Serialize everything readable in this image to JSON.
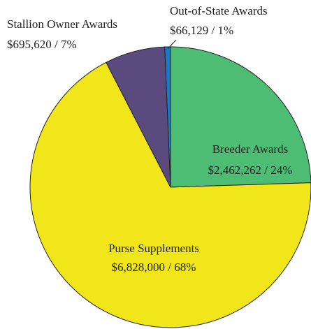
{
  "chart_data": {
    "type": "pie",
    "categories": [
      "Breeder Awards",
      "Purse Supplements",
      "Stallion Owner Awards",
      "Out-of-State Awards"
    ],
    "values": [
      2462262,
      6828000,
      695620,
      66129
    ],
    "value_labels": [
      "$2,462,262 / 24%",
      "$6,828,000 / 68%",
      "$695,620 / 7%",
      "$66,129 / 1%"
    ],
    "colors": [
      "#4dbd74",
      "#f0e619",
      "#5b4a7e",
      "#1a7ac0"
    ]
  }
}
